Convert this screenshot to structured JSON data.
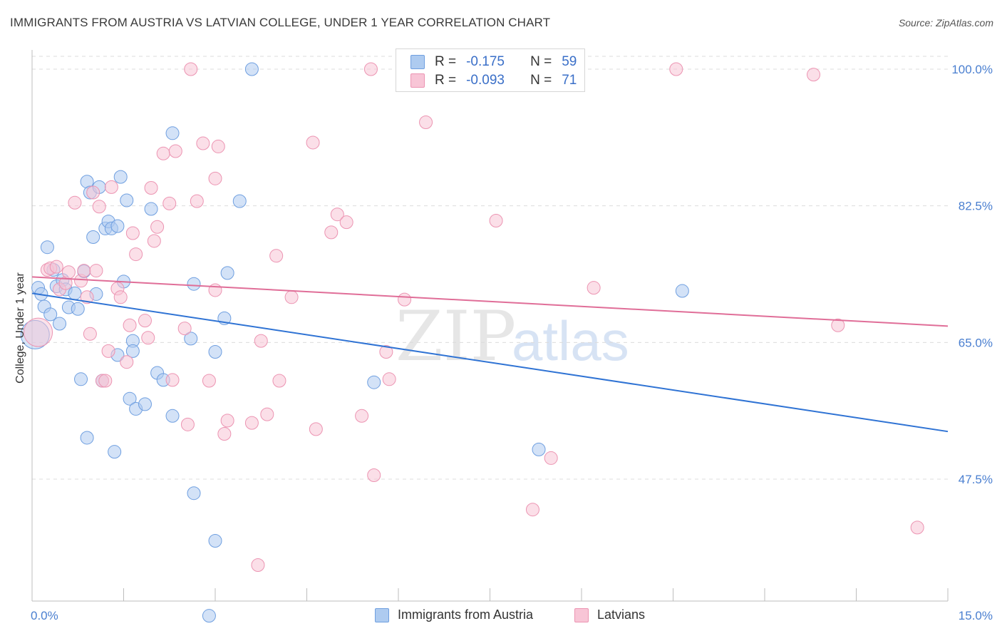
{
  "title": "IMMIGRANTS FROM AUSTRIA VS LATVIAN COLLEGE, UNDER 1 YEAR CORRELATION CHART",
  "source": "Source: ZipAtlas.com",
  "watermark": {
    "part1": "ZIP",
    "part2": "atlas"
  },
  "legend": {
    "rows": [
      {
        "r_label": "R =",
        "r_value": "-0.175",
        "n_label": "N =",
        "n_value": "59"
      },
      {
        "r_label": "R =",
        "r_value": "-0.093",
        "n_label": "N =",
        "n_value": "71"
      }
    ]
  },
  "bottom_legend": [
    "Immigrants from Austria",
    "Latvians"
  ],
  "colors": {
    "austria_fill": "#aecbf0",
    "austria_stroke": "#6f9fe0",
    "austria_line": "#2f73d4",
    "latvian_fill": "#f8c5d6",
    "latvian_stroke": "#ec94b2",
    "latvian_line": "#e06e98",
    "tick_text": "#4a7fd0",
    "grid": "#dcdcdc"
  },
  "chart_data": {
    "type": "scatter",
    "title": "IMMIGRANTS FROM AUSTRIA VS LATVIAN COLLEGE, UNDER 1 YEAR CORRELATION CHART",
    "xlabel": "",
    "ylabel": "College, Under 1 year",
    "xlim": [
      0,
      15
    ],
    "ylim": [
      30,
      102
    ],
    "x_tick_labels": [
      "0.0%",
      "15.0%"
    ],
    "y_ticks": [
      47.5,
      65.0,
      82.5,
      100.0
    ],
    "y_tick_labels": [
      "47.5%",
      "65.0%",
      "82.5%",
      "100.0%"
    ],
    "series": [
      {
        "name": "Immigrants from Austria",
        "r": -0.175,
        "n": 59,
        "trend": {
          "x": [
            0,
            15
          ],
          "y": [
            71.3,
            53.6
          ]
        },
        "points": [
          {
            "x": 0.05,
            "y": 66.0,
            "big": true
          },
          {
            "x": 0.1,
            "y": 72.0
          },
          {
            "x": 0.15,
            "y": 71.2
          },
          {
            "x": 0.2,
            "y": 69.6
          },
          {
            "x": 0.25,
            "y": 77.2
          },
          {
            "x": 0.3,
            "y": 68.6
          },
          {
            "x": 0.35,
            "y": 74.3
          },
          {
            "x": 0.4,
            "y": 72.2
          },
          {
            "x": 0.45,
            "y": 67.4
          },
          {
            "x": 0.5,
            "y": 73.0
          },
          {
            "x": 0.55,
            "y": 71.8
          },
          {
            "x": 0.6,
            "y": 69.5
          },
          {
            "x": 0.7,
            "y": 71.3
          },
          {
            "x": 0.75,
            "y": 69.3
          },
          {
            "x": 0.8,
            "y": 60.3
          },
          {
            "x": 0.85,
            "y": 74.1
          },
          {
            "x": 0.9,
            "y": 52.8
          },
          {
            "x": 0.9,
            "y": 85.6
          },
          {
            "x": 0.95,
            "y": 84.2
          },
          {
            "x": 1.0,
            "y": 78.5
          },
          {
            "x": 1.05,
            "y": 71.2
          },
          {
            "x": 1.1,
            "y": 84.9
          },
          {
            "x": 1.15,
            "y": 60.1
          },
          {
            "x": 1.2,
            "y": 79.6
          },
          {
            "x": 1.25,
            "y": 80.5
          },
          {
            "x": 1.3,
            "y": 79.6
          },
          {
            "x": 1.35,
            "y": 51.0
          },
          {
            "x": 1.4,
            "y": 79.9
          },
          {
            "x": 1.4,
            "y": 63.4
          },
          {
            "x": 1.45,
            "y": 86.2
          },
          {
            "x": 1.5,
            "y": 72.8
          },
          {
            "x": 1.55,
            "y": 83.2
          },
          {
            "x": 1.6,
            "y": 57.8
          },
          {
            "x": 1.65,
            "y": 65.2
          },
          {
            "x": 1.7,
            "y": 56.5
          },
          {
            "x": 1.65,
            "y": 63.9
          },
          {
            "x": 1.85,
            "y": 57.1
          },
          {
            "x": 1.95,
            "y": 82.1
          },
          {
            "x": 2.05,
            "y": 61.1
          },
          {
            "x": 2.15,
            "y": 60.2
          },
          {
            "x": 2.3,
            "y": 55.6
          },
          {
            "x": 2.3,
            "y": 91.8
          },
          {
            "x": 2.6,
            "y": 65.5
          },
          {
            "x": 2.65,
            "y": 45.7
          },
          {
            "x": 2.65,
            "y": 72.5
          },
          {
            "x": 2.9,
            "y": 30.0
          },
          {
            "x": 3.0,
            "y": 63.8
          },
          {
            "x": 3.0,
            "y": 39.6
          },
          {
            "x": 3.15,
            "y": 68.1
          },
          {
            "x": 3.2,
            "y": 73.9
          },
          {
            "x": 3.4,
            "y": 83.1
          },
          {
            "x": 3.6,
            "y": 100.0
          },
          {
            "x": 5.6,
            "y": 59.9
          },
          {
            "x": 8.3,
            "y": 51.3
          },
          {
            "x": 10.65,
            "y": 71.6
          }
        ]
      },
      {
        "name": "Latvians",
        "r": -0.093,
        "n": 71,
        "trend": {
          "x": [
            0,
            15
          ],
          "y": [
            73.4,
            67.1
          ]
        },
        "points": [
          {
            "x": 0.1,
            "y": 66.3,
            "big": true
          },
          {
            "x": 0.25,
            "y": 74.3
          },
          {
            "x": 0.3,
            "y": 74.5
          },
          {
            "x": 0.4,
            "y": 74.7
          },
          {
            "x": 0.45,
            "y": 71.8
          },
          {
            "x": 0.55,
            "y": 72.6
          },
          {
            "x": 0.6,
            "y": 74.0
          },
          {
            "x": 0.7,
            "y": 82.9
          },
          {
            "x": 0.8,
            "y": 72.9
          },
          {
            "x": 0.85,
            "y": 74.2
          },
          {
            "x": 0.9,
            "y": 70.8
          },
          {
            "x": 0.95,
            "y": 66.1
          },
          {
            "x": 1.0,
            "y": 84.2
          },
          {
            "x": 1.05,
            "y": 74.2
          },
          {
            "x": 1.1,
            "y": 82.4
          },
          {
            "x": 1.15,
            "y": 60.1
          },
          {
            "x": 1.2,
            "y": 60.1
          },
          {
            "x": 1.25,
            "y": 63.9
          },
          {
            "x": 1.3,
            "y": 84.9
          },
          {
            "x": 1.4,
            "y": 71.9
          },
          {
            "x": 1.45,
            "y": 70.8
          },
          {
            "x": 1.55,
            "y": 62.5
          },
          {
            "x": 1.6,
            "y": 67.2
          },
          {
            "x": 1.65,
            "y": 79.0
          },
          {
            "x": 1.7,
            "y": 76.3
          },
          {
            "x": 1.85,
            "y": 67.8
          },
          {
            "x": 1.9,
            "y": 65.6
          },
          {
            "x": 1.95,
            "y": 84.8
          },
          {
            "x": 2.0,
            "y": 78.0
          },
          {
            "x": 2.05,
            "y": 79.8
          },
          {
            "x": 2.15,
            "y": 89.2
          },
          {
            "x": 2.25,
            "y": 82.8
          },
          {
            "x": 2.3,
            "y": 60.2
          },
          {
            "x": 2.35,
            "y": 89.5
          },
          {
            "x": 2.5,
            "y": 66.8
          },
          {
            "x": 2.55,
            "y": 54.5
          },
          {
            "x": 2.6,
            "y": 100.0
          },
          {
            "x": 2.7,
            "y": 83.1
          },
          {
            "x": 2.8,
            "y": 90.5
          },
          {
            "x": 2.9,
            "y": 60.1
          },
          {
            "x": 3.0,
            "y": 71.7
          },
          {
            "x": 3.0,
            "y": 86.0
          },
          {
            "x": 3.05,
            "y": 90.1
          },
          {
            "x": 3.15,
            "y": 53.3
          },
          {
            "x": 3.2,
            "y": 55.0
          },
          {
            "x": 3.6,
            "y": 54.7
          },
          {
            "x": 3.7,
            "y": 36.5
          },
          {
            "x": 3.75,
            "y": 65.2
          },
          {
            "x": 3.85,
            "y": 55.8
          },
          {
            "x": 4.0,
            "y": 76.1
          },
          {
            "x": 4.05,
            "y": 60.1
          },
          {
            "x": 4.25,
            "y": 70.8
          },
          {
            "x": 4.6,
            "y": 90.6
          },
          {
            "x": 4.65,
            "y": 53.9
          },
          {
            "x": 4.9,
            "y": 79.1
          },
          {
            "x": 5.0,
            "y": 81.4
          },
          {
            "x": 5.15,
            "y": 80.4
          },
          {
            "x": 5.4,
            "y": 55.6
          },
          {
            "x": 5.6,
            "y": 48.0
          },
          {
            "x": 5.55,
            "y": 100.0
          },
          {
            "x": 5.8,
            "y": 63.8
          },
          {
            "x": 5.85,
            "y": 60.3
          },
          {
            "x": 6.1,
            "y": 70.5
          },
          {
            "x": 6.45,
            "y": 93.2
          },
          {
            "x": 7.6,
            "y": 80.6
          },
          {
            "x": 8.2,
            "y": 43.6
          },
          {
            "x": 8.5,
            "y": 50.2
          },
          {
            "x": 9.2,
            "y": 72.0
          },
          {
            "x": 10.55,
            "y": 100.0
          },
          {
            "x": 12.8,
            "y": 99.3
          },
          {
            "x": 13.2,
            "y": 67.2
          },
          {
            "x": 14.5,
            "y": 41.3
          }
        ]
      }
    ]
  }
}
